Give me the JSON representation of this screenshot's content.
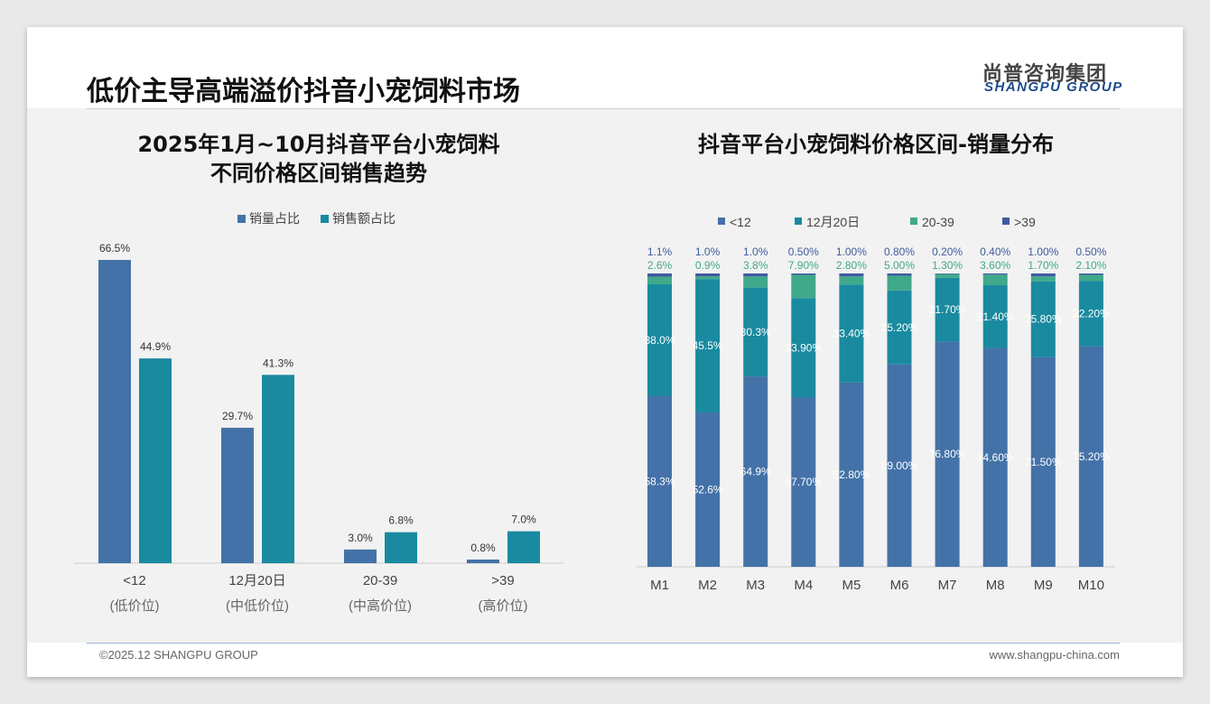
{
  "header": {
    "title": "低价主导高端溢价抖音小宠饲料市场",
    "logo_cn": "尚普咨询集团",
    "logo_en": "SHANGPU GROUP"
  },
  "footer": {
    "copyright": "©2025.12 SHANGPU GROUP",
    "website": "www.shangpu-china.com"
  },
  "colors": {
    "blue": "#4472a8",
    "teal": "#1a8aa0",
    "green": "#3fa98a",
    "navy": "#3f5b9e"
  },
  "chart_data": [
    {
      "type": "bar",
      "title_line1": "2025年1月~10月抖音平台小宠饲料",
      "title_line2": "不同价格区间销售趋势",
      "categories": [
        "<12",
        "12月20日",
        "20-39",
        ">39"
      ],
      "subcategories": [
        "(低价位)",
        "(中低价位)",
        "(中高价位)",
        "(高价位)"
      ],
      "series": [
        {
          "name": "销量占比",
          "values": [
            66.5,
            29.7,
            3.0,
            0.8
          ],
          "labels": [
            "66.5%",
            "29.7%",
            "3.0%",
            "0.8%"
          ]
        },
        {
          "name": "销售额占比",
          "values": [
            44.9,
            41.3,
            6.8,
            7.0
          ],
          "labels": [
            "44.9%",
            "41.3%",
            "6.8%",
            "7.0%"
          ]
        }
      ],
      "ylim": [
        0,
        70
      ],
      "legend": "top-center"
    },
    {
      "type": "bar",
      "stacked": true,
      "title": "抖音平台小宠饲料价格区间-销量分布",
      "categories": [
        "M1",
        "M2",
        "M3",
        "M4",
        "M5",
        "M6",
        "M7",
        "M8",
        "M9",
        "M10"
      ],
      "series": [
        {
          "name": "<12",
          "values": [
            58.3,
            52.6,
            64.9,
            57.7,
            62.8,
            69.0,
            76.8,
            74.6,
            71.5,
            75.2
          ],
          "labels": [
            "58.3%",
            "52.6%",
            "64.9%",
            "57.70%",
            "62.80%",
            "69.00%",
            "76.80%",
            "74.60%",
            "71.50%",
            "75.20%"
          ]
        },
        {
          "name": "12月20日",
          "values": [
            38.0,
            45.5,
            30.3,
            33.9,
            33.4,
            25.2,
            21.7,
            21.4,
            25.8,
            22.2
          ],
          "labels": [
            "38.0%",
            "45.5%",
            "30.3%",
            "33.90%",
            "33.40%",
            "25.20%",
            "21.70%",
            "21.40%",
            "25.80%",
            "22.20%"
          ]
        },
        {
          "name": "20-39",
          "values": [
            2.6,
            0.9,
            3.8,
            7.9,
            2.8,
            5.0,
            1.3,
            3.6,
            1.7,
            2.1
          ],
          "labels": [
            "2.6%",
            "0.9%",
            "3.8%",
            "7.90%",
            "2.80%",
            "5.00%",
            "1.30%",
            "3.60%",
            "1.70%",
            "2.10%"
          ]
        },
        {
          "name": ">39",
          "values": [
            1.1,
            1.0,
            1.0,
            0.5,
            1.0,
            0.8,
            0.2,
            0.4,
            1.0,
            0.5
          ],
          "labels": [
            "1.1%",
            "1.0%",
            "1.0%",
            "0.50%",
            "1.00%",
            "0.80%",
            "0.20%",
            "0.40%",
            "1.00%",
            "0.50%"
          ]
        }
      ],
      "ylim": [
        0,
        100
      ],
      "legend": "top-center"
    }
  ]
}
